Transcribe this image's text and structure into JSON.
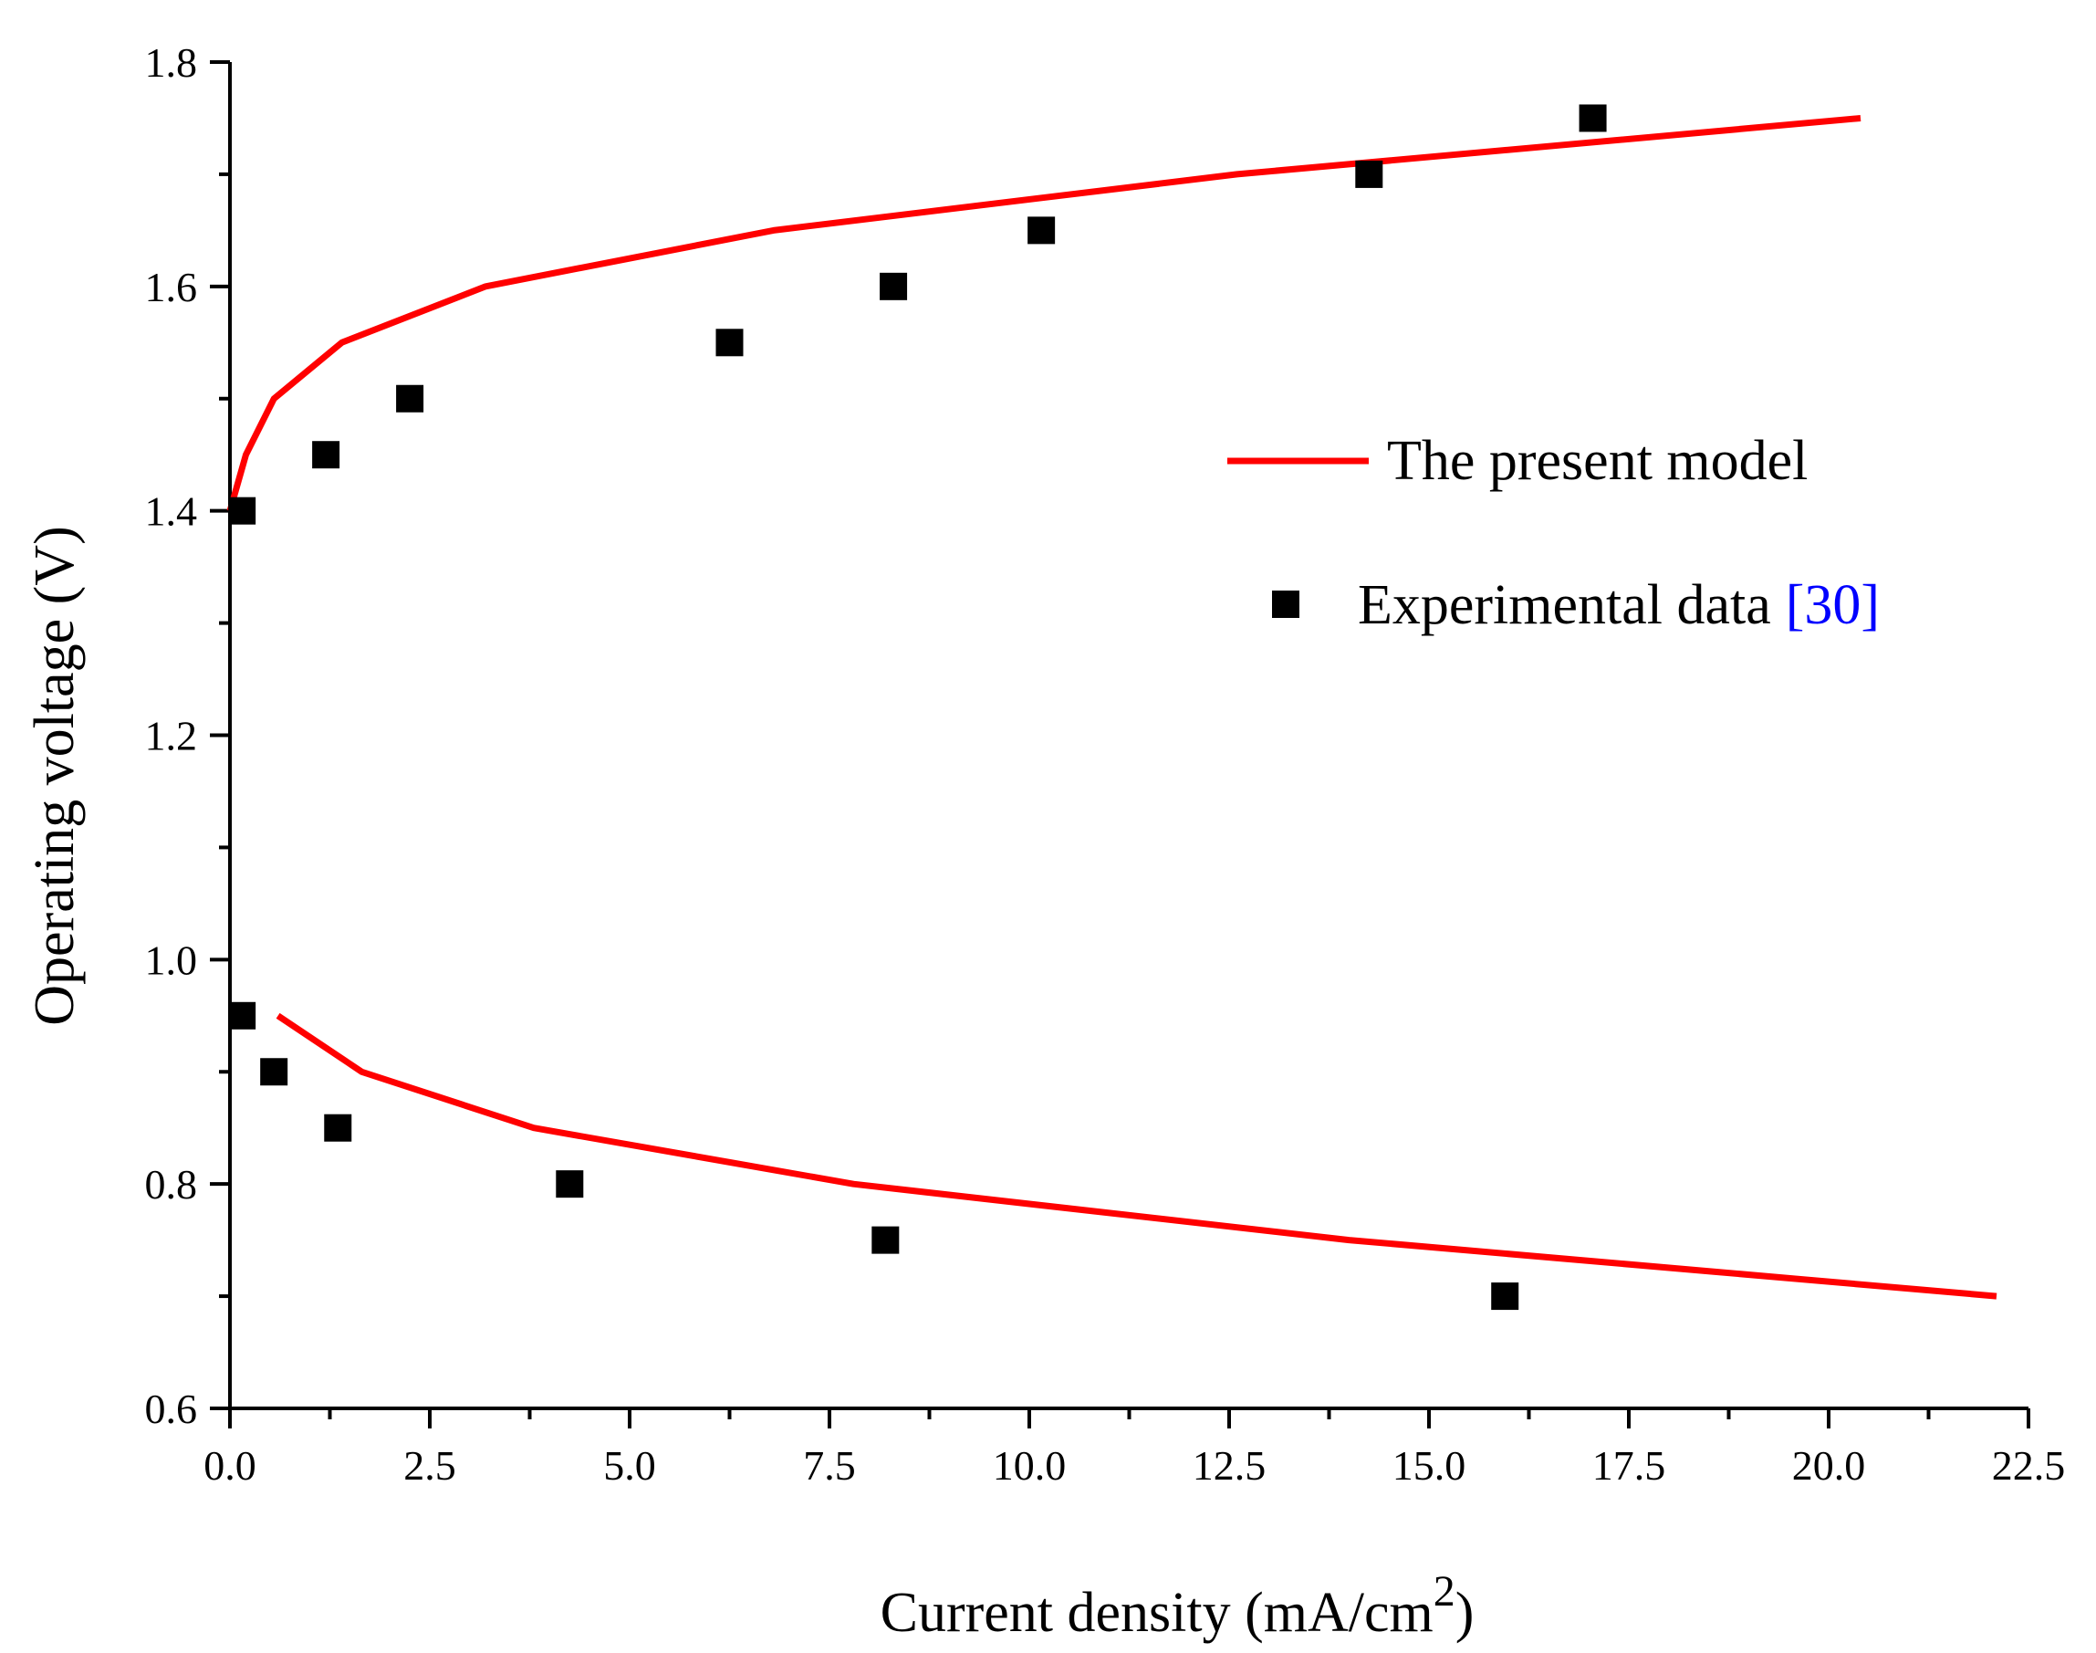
{
  "chart_data": {
    "type": "line",
    "title": "",
    "xlabel": "Current density (mA/cm",
    "xlabel_sup": "2",
    "xlabel_close": ")",
    "ylabel": "Operating voltage (V)",
    "xlim": [
      0,
      22.5
    ],
    "ylim": [
      0.6,
      1.8
    ],
    "x_ticks": [
      "0.0",
      "2.5",
      "5.0",
      "7.5",
      "10.0",
      "12.5",
      "15.0",
      "17.5",
      "20.0",
      "22.5"
    ],
    "y_ticks": [
      "0.6",
      "0.8",
      "1.0",
      "1.2",
      "1.4",
      "1.6",
      "1.8"
    ],
    "grid": false,
    "legend_position": "upper-right",
    "series": [
      {
        "name": "The present model",
        "style": "line",
        "color": "#ff0000",
        "segments": [
          {
            "x": [
              0,
              0.2,
              0.55,
              1.4,
              3.2,
              6.8,
              12.6,
              20.4
            ],
            "y": [
              1.4,
              1.45,
              1.5,
              1.55,
              1.6,
              1.65,
              1.7,
              1.75
            ]
          },
          {
            "x": [
              0.6,
              1.65,
              3.8,
              7.8,
              14.0,
              22.1
            ],
            "y": [
              0.95,
              0.9,
              0.85,
              0.8,
              0.75,
              0.7
            ]
          }
        ]
      },
      {
        "name": "Experimental data",
        "name_ref": "[30]",
        "ref_color": "#0000ff",
        "style": "marker",
        "marker": "square",
        "color": "#000000",
        "x": [
          0.15,
          1.2,
          2.25,
          6.25,
          8.3,
          10.15,
          14.25,
          17.05,
          0.15,
          0.55,
          1.35,
          4.25,
          8.2,
          15.95
        ],
        "y": [
          1.4,
          1.45,
          1.5,
          1.55,
          1.6,
          1.65,
          1.7,
          1.75,
          0.95,
          0.9,
          0.85,
          0.8,
          0.75,
          0.7
        ]
      }
    ]
  }
}
